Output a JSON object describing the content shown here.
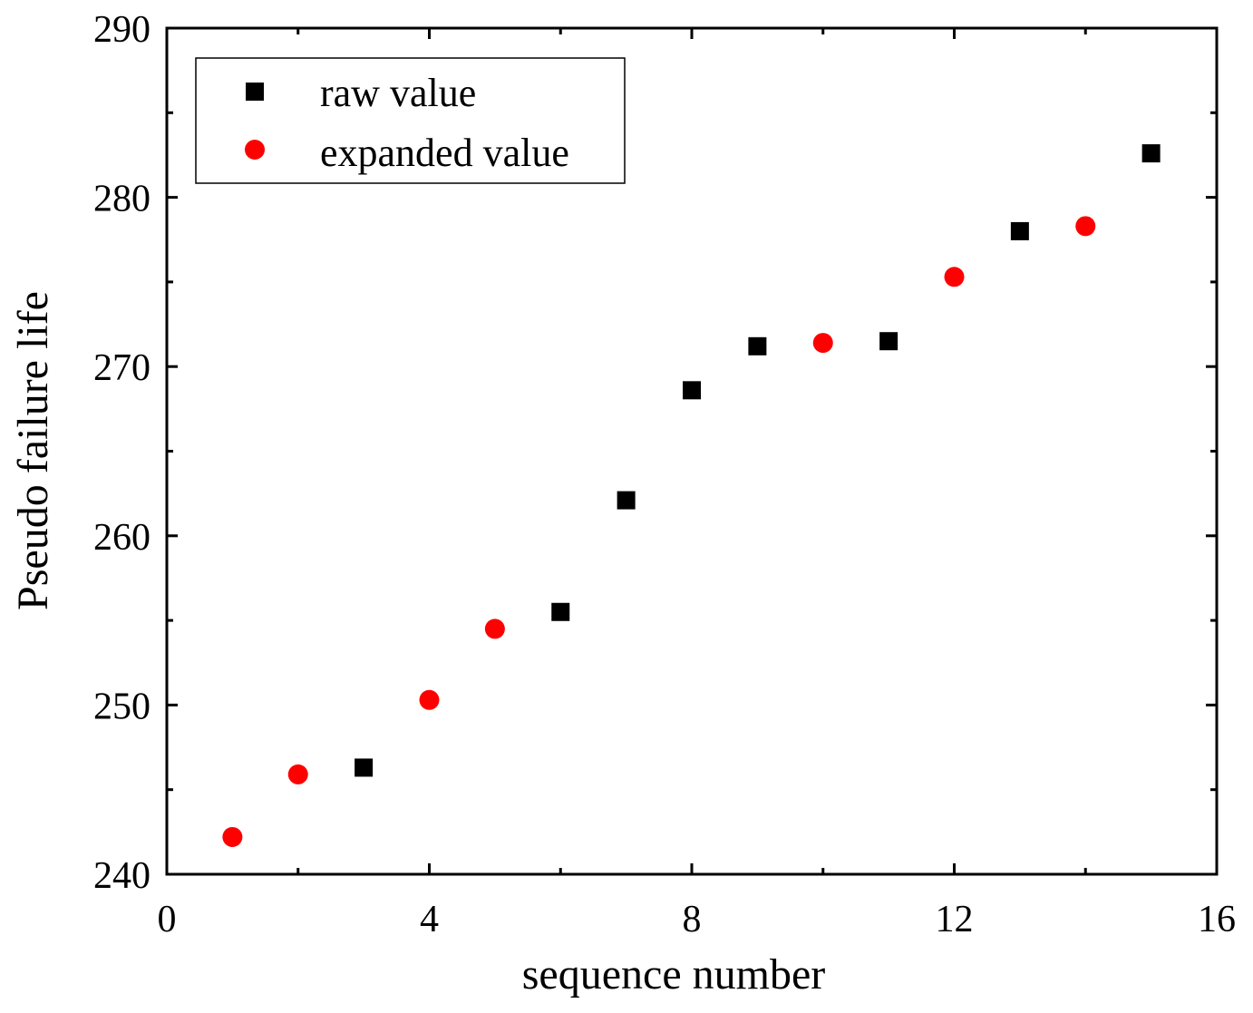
{
  "chart_data": {
    "type": "scatter",
    "title": "",
    "xlabel": "sequence number",
    "ylabel": "Pseudo failure life",
    "xlim": [
      0,
      16
    ],
    "ylim": [
      240,
      290
    ],
    "x_ticks": [
      0,
      4,
      8,
      12,
      16
    ],
    "y_ticks": [
      240,
      250,
      260,
      270,
      280,
      290
    ],
    "x_tick_labels": [
      "0",
      "4",
      "8",
      "12",
      "16"
    ],
    "y_tick_labels": [
      "240",
      "250",
      "260",
      "270",
      "280",
      "290"
    ],
    "grid": false,
    "legend_position": "top-left",
    "series": [
      {
        "name": "raw value",
        "marker": "square",
        "color": "#000000",
        "x": [
          3,
          6,
          7,
          8,
          9,
          11,
          13,
          15
        ],
        "y": [
          246.3,
          255.5,
          262.1,
          268.6,
          271.2,
          271.5,
          278.0,
          282.6
        ]
      },
      {
        "name": "expanded value",
        "marker": "circle",
        "color": "#ff0000",
        "x": [
          1,
          2,
          4,
          5,
          10,
          12,
          14
        ],
        "y": [
          242.2,
          245.9,
          250.3,
          254.5,
          271.4,
          275.3,
          278.3
        ]
      }
    ]
  }
}
